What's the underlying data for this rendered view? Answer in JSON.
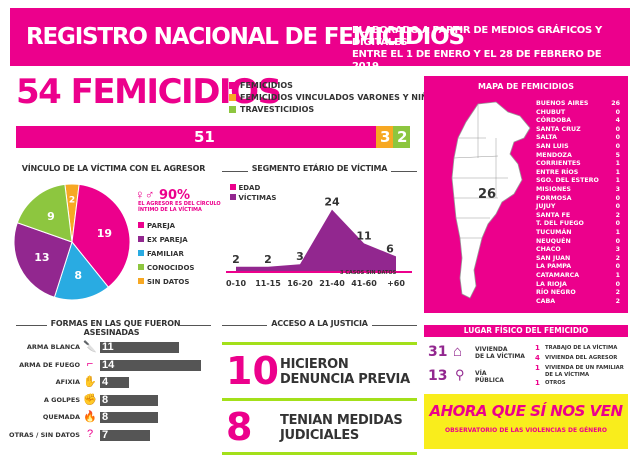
{
  "header": {
    "title": "REGISTRO NACIONAL DE FEMICIDIOS",
    "subtitle_line1": "ELABORADO A PARTIR DE MEDIOS GRÁFICOS Y DIGITALES",
    "subtitle_line2": "ENTRE EL 1 DE ENERO Y EL 28 DE FEBRERO DE 2019"
  },
  "summary": {
    "total": "54 FEMICIDIOS",
    "legend": [
      {
        "label": "FEMICIDIOS",
        "color": "#ec008c"
      },
      {
        "label": "FEMICIDIOS VINCULADOS VARONES Y NIÑOS",
        "color": "#f7a823"
      },
      {
        "label": "TRAVESTICIDIOS",
        "color": "#8dc63f"
      }
    ],
    "bar": {
      "femicidios": 51,
      "vinculados": 3,
      "travesticidios": 2
    },
    "bar_labels": {
      "femicidios": "51",
      "vinculados": "3",
      "travesticidios": "2"
    }
  },
  "vinculo": {
    "title": "VÍNCULO DE LA VÍCTIMA CON EL AGRESOR",
    "highlight": "90%",
    "highlight_text_1": "EL AGRESOR ES DEL CÍRCULO",
    "highlight_text_2": "ÍNTIMO DE LA VÍCTIMA",
    "slices": [
      {
        "label": "PAREJA",
        "value": 19,
        "color": "#ec008c",
        "text": "19"
      },
      {
        "label": "EX PAREJA",
        "value": 13,
        "color": "#92278f",
        "text": "13"
      },
      {
        "label": "FAMILIAR",
        "value": 8,
        "color": "#29abe2",
        "text": "8"
      },
      {
        "label": "CONOCIDOS",
        "value": 9,
        "color": "#8dc63f",
        "text": "9"
      },
      {
        "label": "SIN DATOS",
        "value": 2,
        "color": "#f7a823",
        "text": "2"
      }
    ]
  },
  "edad": {
    "title": "SEGMENTO ETÁRIO DE VÍCTIMA",
    "legend_edad": "EDAD",
    "legend_victimas": "VÍCTIMAS",
    "note": "3 CASOS SIN DATOS",
    "categories": [
      "0-10",
      "11-15",
      "16-20",
      "21-40",
      "41-60",
      "+60"
    ],
    "values": [
      2,
      2,
      3,
      24,
      11,
      6
    ],
    "value_labels": [
      "2",
      "2",
      "3",
      "24",
      "11",
      "6"
    ]
  },
  "mapa": {
    "title": "MAPA DE FEMICIDIOS",
    "big_number": "26",
    "provinces": [
      {
        "name": "BUENOS AIRES",
        "n": "26"
      },
      {
        "name": "CHUBUT",
        "n": "0"
      },
      {
        "name": "CÓRDOBA",
        "n": "4"
      },
      {
        "name": "SANTA CRUZ",
        "n": "0"
      },
      {
        "name": "SALTA",
        "n": "0"
      },
      {
        "name": "SAN LUIS",
        "n": "0"
      },
      {
        "name": "MENDOZA",
        "n": "5"
      },
      {
        "name": "CORRIENTES",
        "n": "1"
      },
      {
        "name": "ENTRE RÍOS",
        "n": "1"
      },
      {
        "name": "SGO. DEL ESTERO",
        "n": "1"
      },
      {
        "name": "MISIONES",
        "n": "3"
      },
      {
        "name": "FORMOSA",
        "n": "0"
      },
      {
        "name": "JUJUY",
        "n": "0"
      },
      {
        "name": "SANTA FE",
        "n": "2"
      },
      {
        "name": "T. DEL FUEGO",
        "n": "0"
      },
      {
        "name": "TUCUMÁN",
        "n": "1"
      },
      {
        "name": "NEUQUÉN",
        "n": "0"
      },
      {
        "name": "CHACO",
        "n": "3"
      },
      {
        "name": "SAN JUAN",
        "n": "2"
      },
      {
        "name": "LA PAMPA",
        "n": "0"
      },
      {
        "name": "CATAMARCA",
        "n": "1"
      },
      {
        "name": "LA RIOJA",
        "n": "0"
      },
      {
        "name": "RÍO NEGRO",
        "n": "2"
      },
      {
        "name": "CABA",
        "n": "2"
      }
    ]
  },
  "formas": {
    "title": "FORMAS EN LAS QUE FUERON ASESINADAS",
    "items": [
      {
        "label": "ARMA BLANCA",
        "value": 11,
        "text": "11",
        "icon": "knife-icon",
        "glyph": "🔪"
      },
      {
        "label": "ARMA DE FUEGO",
        "value": 14,
        "text": "14",
        "icon": "gun-icon",
        "glyph": "⌐"
      },
      {
        "label": "AFIXIA",
        "value": 4,
        "text": "4",
        "icon": "hands-icon",
        "glyph": "✋"
      },
      {
        "label": "A GOLPES",
        "value": 8,
        "text": "8",
        "icon": "fist-icon",
        "glyph": "✊"
      },
      {
        "label": "QUEMADA",
        "value": 8,
        "text": "8",
        "icon": "fire-icon",
        "glyph": "🔥"
      },
      {
        "label": "OTRAS / SIN DATOS",
        "value": 7,
        "text": "7",
        "icon": "question-icon",
        "glyph": "?"
      }
    ]
  },
  "justicia": {
    "title": "ACCESO A LA JUSTICIA",
    "row1": {
      "num": "10",
      "line1": "HICIERON",
      "line2": "DENUNCIA PREVIA"
    },
    "row2": {
      "num": "8",
      "line1": "TENIAN MEDIDAS",
      "line2": "JUDICIALES"
    }
  },
  "lugar": {
    "title": "LUGAR FÍSICO DEL FEMICIDIO",
    "vivienda": {
      "num": "31",
      "label1": "VIVIENDA",
      "label2": "DE LA VÍCTIMA"
    },
    "via": {
      "num": "13",
      "label1": "VÍA",
      "label2": "PÚBLICA"
    },
    "others": [
      {
        "n": "1",
        "label": "TRABAJO DE LA VÍCTIMA"
      },
      {
        "n": "4",
        "label": "VIVIENDA DEL AGRESOR"
      },
      {
        "n": "1",
        "label": "VIVIENDA DE UN FAMILIAR DE LA VÍCTIMA"
      },
      {
        "n": "1",
        "label": "OTROS"
      }
    ]
  },
  "footer": {
    "logo_text": "AHORA QUE SÍ NOS VEN",
    "subtitle": "OBSERVATORIO DE LAS VIOLENCIAS DE GÉNERO"
  }
}
